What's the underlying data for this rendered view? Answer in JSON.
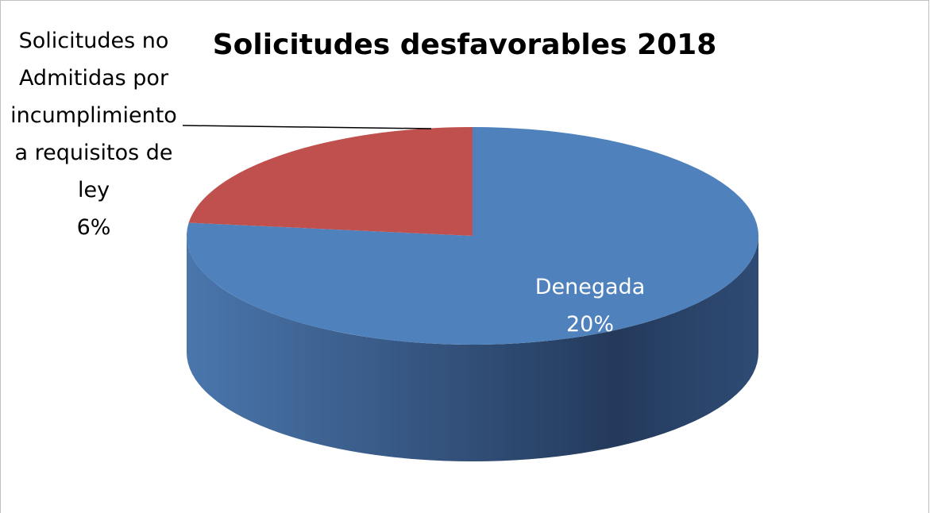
{
  "chart_data": {
    "type": "pie",
    "title": "Solicitudes desfavorables 2018",
    "categories": [
      "Denegada",
      "Solicitudes no Admitidas por incumplimiento a requisitos de ley"
    ],
    "values": [
      20,
      6
    ],
    "value_labels": [
      "20%",
      "6%"
    ],
    "colors": [
      "#4f81bd",
      "#c0504d"
    ]
  }
}
